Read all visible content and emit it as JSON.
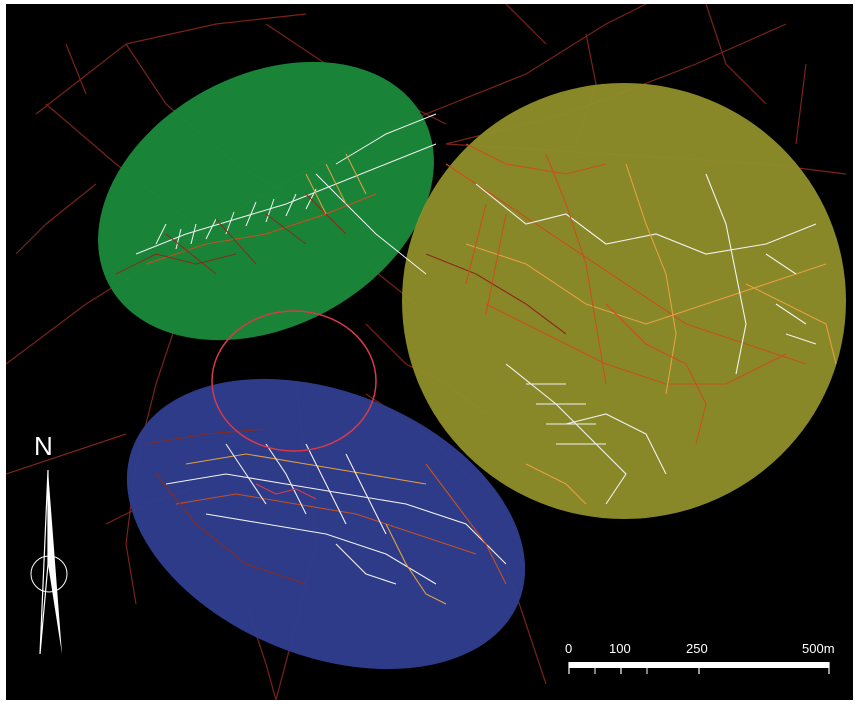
{
  "map": {
    "north_label": "N",
    "scale_bar": {
      "labels": [
        "0",
        "100",
        "250",
        "500m"
      ],
      "values": [
        0,
        100,
        250,
        500
      ],
      "unit": "m"
    },
    "zones": [
      {
        "id": "green",
        "color": "#1a8a3a"
      },
      {
        "id": "olive",
        "color": "#8f8f2a"
      },
      {
        "id": "blue",
        "color": "#2f3e8f"
      }
    ],
    "highlight_ring_color": "#d43b4a",
    "network_colors": [
      "#8b2a1a",
      "#c8501e",
      "#e5a040",
      "#f2f2f2"
    ]
  }
}
